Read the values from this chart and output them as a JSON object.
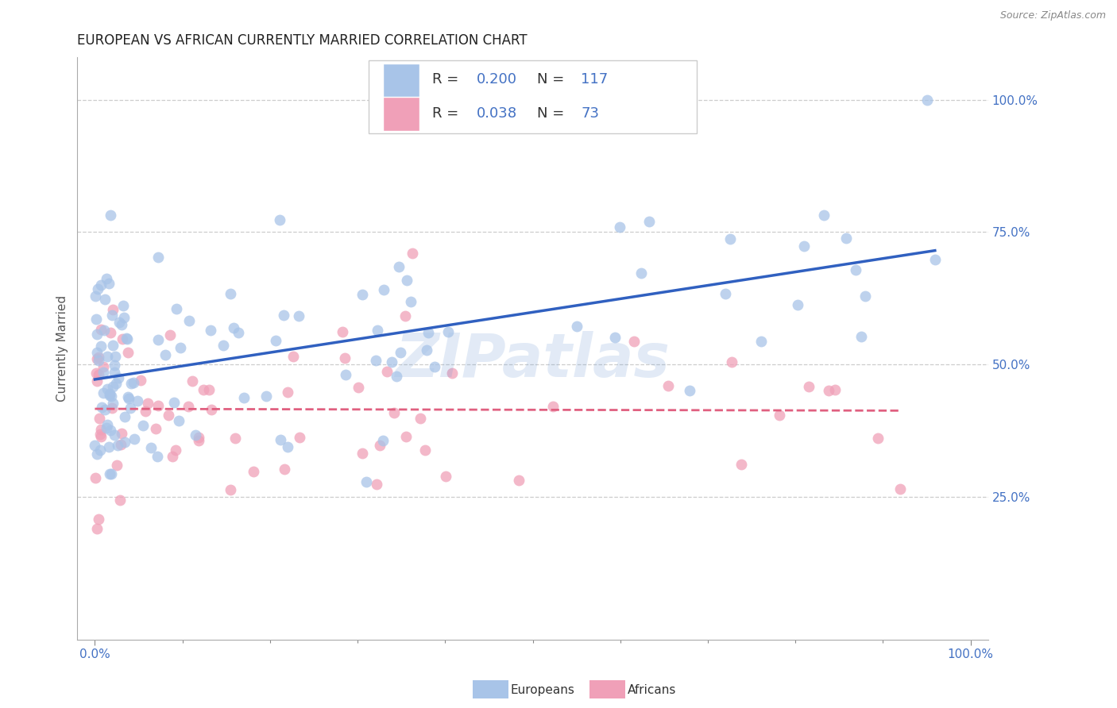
{
  "title": "EUROPEAN VS AFRICAN CURRENTLY MARRIED CORRELATION CHART",
  "source": "Source: ZipAtlas.com",
  "ylabel": "Currently Married",
  "watermark": "ZIPatlas",
  "europeans": {
    "R": 0.2,
    "N": 117,
    "dot_color": "#a8c4e8",
    "line_color": "#3060c0"
  },
  "africans": {
    "R": 0.038,
    "N": 73,
    "dot_color": "#f0a0b8",
    "line_color": "#e06080"
  },
  "xlim": [
    -2,
    102
  ],
  "ylim": [
    -2,
    108
  ],
  "y_ticks": [
    25,
    50,
    75,
    100
  ],
  "y_tick_labels": [
    "25.0%",
    "50.0%",
    "75.0%",
    "100.0%"
  ],
  "x_tick_labels": [
    "0.0%",
    "100.0%"
  ],
  "grid_color": "#c8c8c8",
  "background_color": "#ffffff",
  "title_color": "#222222",
  "tick_label_color": "#4472c4",
  "title_fontsize": 12
}
